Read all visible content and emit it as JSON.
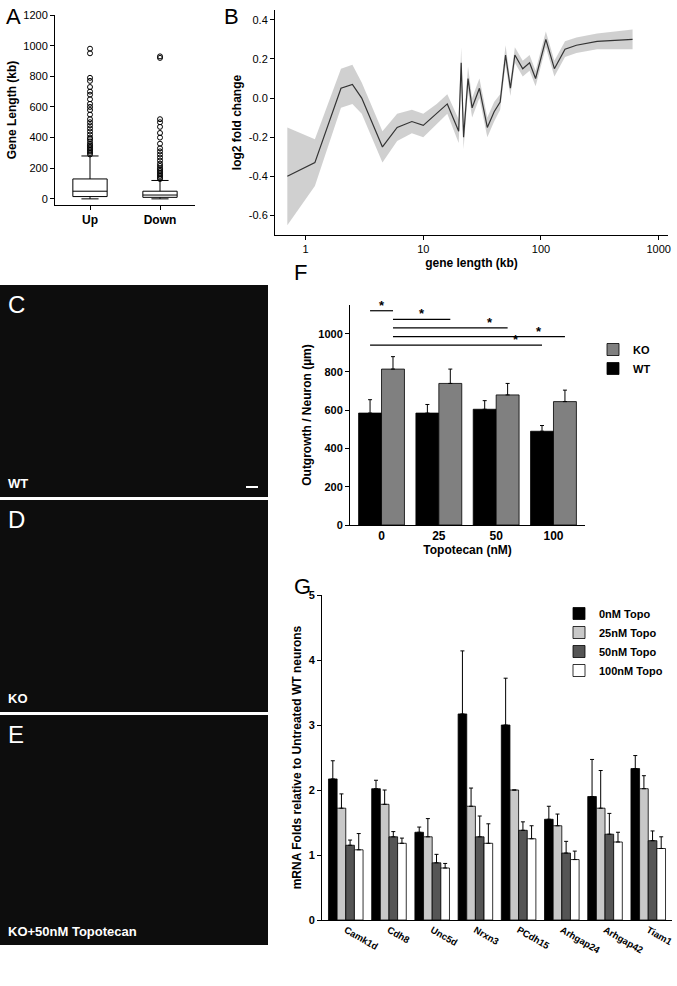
{
  "chart_data": [
    {
      "type": "box",
      "title": "A",
      "categories": [
        "Up",
        "Down"
      ],
      "boxes": [
        {
          "q1": 15,
          "median": 50,
          "q3": 130,
          "whisker_low": 0,
          "whisker_high": 280,
          "outliers": [
            290,
            300,
            310,
            320,
            330,
            340,
            350,
            360,
            375,
            390,
            400,
            420,
            440,
            460,
            480,
            500,
            520,
            550,
            580,
            600,
            620,
            650,
            680,
            700,
            730,
            770,
            790,
            950,
            980
          ]
        },
        {
          "q1": 10,
          "median": 25,
          "q3": 50,
          "whisker_low": 0,
          "whisker_high": 120,
          "outliers": [
            130,
            140,
            150,
            160,
            170,
            180,
            190,
            200,
            215,
            230,
            250,
            270,
            290,
            310,
            330,
            360,
            400,
            430,
            470,
            500,
            520,
            920,
            930
          ]
        }
      ],
      "y_label": "Gene Length (kb)",
      "ylim": [
        -40,
        1200
      ],
      "yticks": [
        0,
        200,
        400,
        600,
        800,
        1000,
        1200
      ]
    },
    {
      "type": "line",
      "title": "B",
      "color": "#333333",
      "x": [
        0.7,
        1.2,
        2,
        2.5,
        3,
        4.5,
        6,
        8,
        10,
        13,
        16,
        20,
        21,
        22,
        24,
        26,
        30,
        35,
        40,
        45,
        50,
        55,
        60,
        70,
        80,
        90,
        110,
        130,
        160,
        200,
        300,
        600
      ],
      "values": [
        -0.4,
        -0.33,
        0.05,
        0.07,
        0.0,
        -0.25,
        -0.15,
        -0.12,
        -0.14,
        -0.08,
        -0.03,
        -0.17,
        0.18,
        -0.2,
        0.1,
        -0.05,
        0.05,
        -0.15,
        -0.07,
        -0.02,
        0.22,
        0.05,
        0.22,
        0.15,
        0.18,
        0.1,
        0.3,
        0.15,
        0.25,
        0.27,
        0.29,
        0.3
      ],
      "band_lower": [
        -0.65,
        -0.45,
        -0.05,
        -0.03,
        -0.08,
        -0.33,
        -0.22,
        -0.18,
        -0.2,
        -0.13,
        -0.08,
        -0.23,
        0.1,
        -0.26,
        0.04,
        -0.1,
        0.0,
        -0.2,
        -0.12,
        -0.06,
        0.17,
        0.01,
        0.18,
        0.11,
        0.14,
        0.06,
        0.26,
        0.11,
        0.21,
        0.23,
        0.25,
        0.25
      ],
      "band_upper": [
        -0.15,
        -0.21,
        0.15,
        0.17,
        0.08,
        -0.17,
        -0.08,
        -0.06,
        -0.08,
        -0.03,
        0.02,
        -0.11,
        0.26,
        -0.14,
        0.16,
        0.0,
        0.1,
        -0.1,
        -0.02,
        0.02,
        0.27,
        0.09,
        0.26,
        0.19,
        0.22,
        0.14,
        0.34,
        0.19,
        0.29,
        0.31,
        0.33,
        0.35
      ],
      "log": "x",
      "x_label": "gene length (kb)",
      "y_label": "log2 fold change",
      "xlim": [
        0.55,
        1200
      ],
      "xticks": [
        1,
        10,
        100,
        1000
      ],
      "ylim": [
        -0.7,
        0.45
      ],
      "yticks": [
        -0.6,
        -0.4,
        -0.2,
        {
          "value": 0,
          "label": "0.0"
        },
        0.2,
        0.4
      ]
    },
    {
      "type": "bar",
      "title": "F",
      "categories": [
        "0",
        "25",
        "50",
        "100"
      ],
      "series": [
        {
          "name": "WT",
          "color": "#000000",
          "values": [
            585,
            585,
            605,
            490
          ],
          "errors": [
            70,
            45,
            45,
            30
          ]
        },
        {
          "name": "KO",
          "color": "#808080",
          "values": [
            815,
            740,
            680,
            645
          ],
          "errors": [
            65,
            75,
            60,
            60
          ]
        }
      ],
      "x_label": "Topotecan (nM)",
      "y_label": "Outgrowth / Neuron (µm)",
      "ylim": [
        0,
        1150
      ],
      "yticks": [
        0,
        200,
        400,
        600,
        800,
        1000
      ],
      "legend": "upper right",
      "significance": [
        {
          "from": {
            "category": "0",
            "series": "WT"
          },
          "to": {
            "category": "0",
            "series": "KO"
          },
          "y": 1120,
          "text": "*"
        },
        {
          "from": {
            "category": "0",
            "series": "KO"
          },
          "to": {
            "category": "25",
            "series": "KO"
          },
          "y": 1075,
          "text": "*"
        },
        {
          "from": {
            "category": "0",
            "series": "KO"
          },
          "to": {
            "category": "50",
            "series": "KO"
          },
          "y": 1030,
          "text": "*"
        },
        {
          "from": {
            "category": "0",
            "series": "KO"
          },
          "to": {
            "category": "100",
            "series": "KO"
          },
          "y": 985,
          "text": "*"
        },
        {
          "from": {
            "category": "0",
            "series": "WT"
          },
          "to": {
            "category": "100",
            "series": "WT"
          },
          "y": 940,
          "text": "*"
        }
      ]
    },
    {
      "type": "bar",
      "title": "G",
      "categories": [
        "Camk1d",
        "Cdh8",
        "Unc5d",
        "Nrxn3",
        "PCdh15",
        "Arhgap24",
        "Arhgap42",
        "Tiam1"
      ],
      "series": [
        {
          "name": "0nM Topo",
          "color": "#000000",
          "values": [
            2.17,
            2.02,
            1.35,
            3.17,
            3.0,
            1.55,
            1.9,
            2.33
          ],
          "errors": [
            0.28,
            0.13,
            0.08,
            0.97,
            0.72,
            0.2,
            0.57,
            0.2
          ]
        },
        {
          "name": "25nM Topo",
          "color": "#c8c8c8",
          "values": [
            1.72,
            1.78,
            1.28,
            1.75,
            2.0,
            1.45,
            1.72,
            2.02
          ],
          "errors": [
            0.22,
            0.22,
            0.28,
            0.28,
            0,
            0.18,
            0.58,
            0.2
          ]
        },
        {
          "name": "50nM Topo",
          "color": "#555555",
          "values": [
            1.15,
            1.28,
            0.88,
            1.28,
            1.38,
            1.03,
            1.32,
            1.22
          ],
          "errors": [
            0.08,
            0.08,
            0.13,
            0.32,
            0.13,
            0.18,
            0.32,
            0.15
          ]
        },
        {
          "name": "100nM Topo",
          "color": "#ffffff",
          "values": [
            1.08,
            1.18,
            0.8,
            1.18,
            1.25,
            0.93,
            1.2,
            1.1
          ],
          "errors": [
            0.25,
            0.08,
            0.07,
            0.3,
            0.2,
            0.13,
            0.15,
            0.18
          ]
        }
      ],
      "y_label": "mRNA Folds relative to Untreated WT neurons",
      "ylim": [
        0,
        5
      ],
      "yticks": [
        0,
        1,
        2,
        3,
        4,
        5
      ],
      "legend": "upper right"
    }
  ],
  "images": [
    {
      "title": "C",
      "label": "WT"
    },
    {
      "title": "D",
      "label": "KO"
    },
    {
      "title": "E",
      "label": "KO+50nM Topotecan"
    }
  ]
}
